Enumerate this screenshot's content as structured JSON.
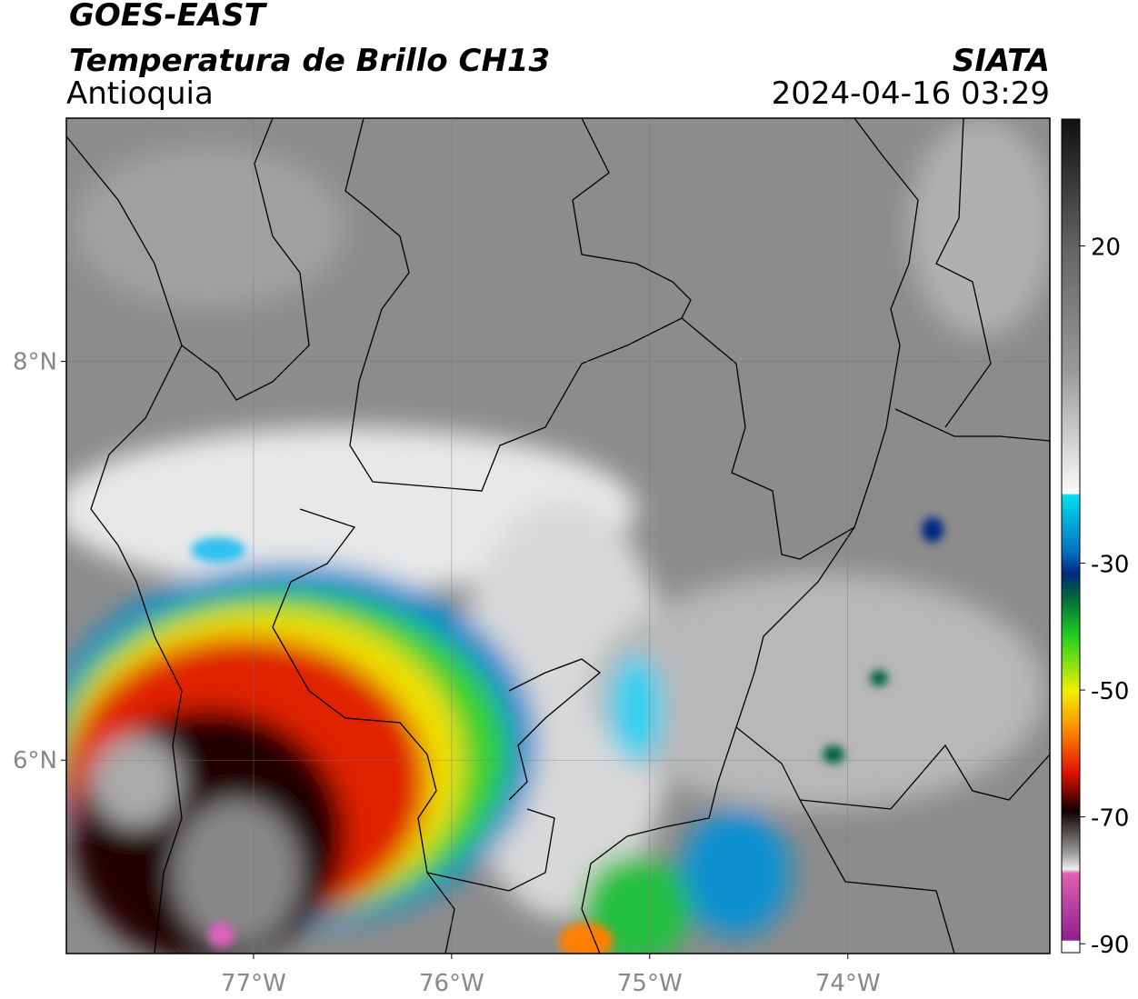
{
  "header": {
    "title": "GOES-EAST",
    "subtitle": "Temperatura de Brillo CH13",
    "region": "Antioquia",
    "source": "SIATA",
    "timestamp": "2024-04-16 03:29"
  },
  "map": {
    "lonlim": [
      -77.945,
      -72.98
    ],
    "latlim": [
      5.03,
      9.22
    ],
    "lonticks": [
      {
        "value": -77,
        "label": "77°W"
      },
      {
        "value": -76,
        "label": "76°W"
      },
      {
        "value": -75,
        "label": "75°W"
      },
      {
        "value": -74,
        "label": "74°W"
      }
    ],
    "latticks": [
      {
        "value": 8,
        "label": "8°N"
      },
      {
        "value": 6,
        "label": "6°N"
      }
    ],
    "grid": true
  },
  "colorbar": {
    "lim": [
      -91.4,
      40
    ],
    "ticks": [
      20,
      -30,
      -50,
      -70,
      -90
    ]
  }
}
